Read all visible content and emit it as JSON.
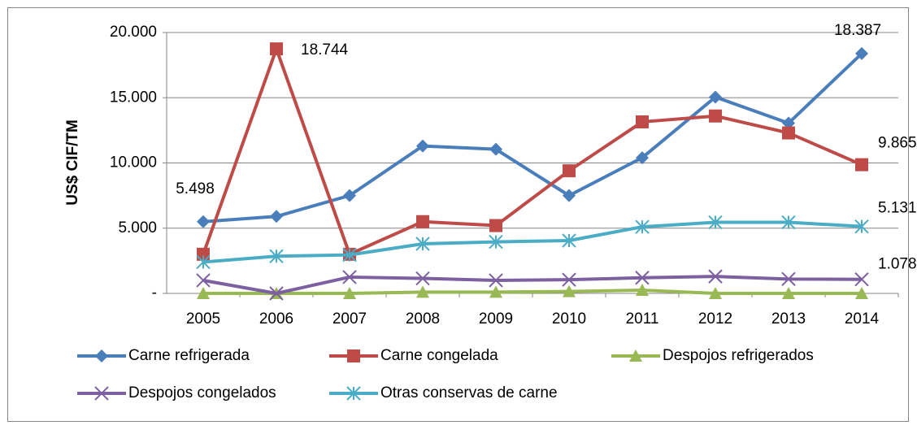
{
  "chart_data": {
    "type": "line",
    "ylabel": "US$ CIF/TM",
    "categories": [
      "2005",
      "2006",
      "2007",
      "2008",
      "2009",
      "2010",
      "2011",
      "2012",
      "2013",
      "2014"
    ],
    "ylim": [
      0,
      20000
    ],
    "yticks": [
      {
        "value": 0,
        "label": "-"
      },
      {
        "value": 5000,
        "label": "5.000"
      },
      {
        "value": 10000,
        "label": "10.000"
      },
      {
        "value": 15000,
        "label": "15.000"
      },
      {
        "value": 20000,
        "label": "20.000"
      }
    ],
    "grid": true,
    "legend": "bottom",
    "series": [
      {
        "name": "Carne refrigerada",
        "color": "#4a7ebb",
        "marker": "diamond",
        "values": [
          5498,
          5900,
          7500,
          11300,
          11050,
          7500,
          10400,
          15050,
          13050,
          18387
        ],
        "value_labels": [
          "5.498",
          null,
          null,
          null,
          null,
          null,
          null,
          null,
          null,
          "18.387"
        ]
      },
      {
        "name": "Carne congelada",
        "color": "#be4b48",
        "marker": "square",
        "values": [
          3000,
          18744,
          3000,
          5500,
          5200,
          9400,
          13150,
          13600,
          12300,
          9865
        ],
        "value_labels": [
          null,
          "18.744",
          null,
          null,
          null,
          null,
          null,
          null,
          null,
          "9.865"
        ]
      },
      {
        "name": "Despojos refrigerados",
        "color": "#98b954",
        "marker": "triangle",
        "values": [
          0,
          0,
          0,
          100,
          100,
          150,
          250,
          0,
          0,
          0
        ]
      },
      {
        "name": "Despojos congelados",
        "color": "#7d60a0",
        "marker": "x",
        "values": [
          1000,
          0,
          1250,
          1150,
          1000,
          1050,
          1200,
          1300,
          1100,
          1078
        ],
        "value_labels": [
          null,
          null,
          null,
          null,
          null,
          null,
          null,
          null,
          null,
          "1.078"
        ]
      },
      {
        "name": "Otras conservas de carne",
        "color": "#4bacc6",
        "marker": "star",
        "values": [
          2400,
          2850,
          2950,
          3800,
          3950,
          4050,
          5100,
          5450,
          5450,
          5131
        ],
        "value_labels": [
          null,
          null,
          null,
          null,
          null,
          null,
          null,
          null,
          null,
          "5.131"
        ]
      }
    ]
  }
}
